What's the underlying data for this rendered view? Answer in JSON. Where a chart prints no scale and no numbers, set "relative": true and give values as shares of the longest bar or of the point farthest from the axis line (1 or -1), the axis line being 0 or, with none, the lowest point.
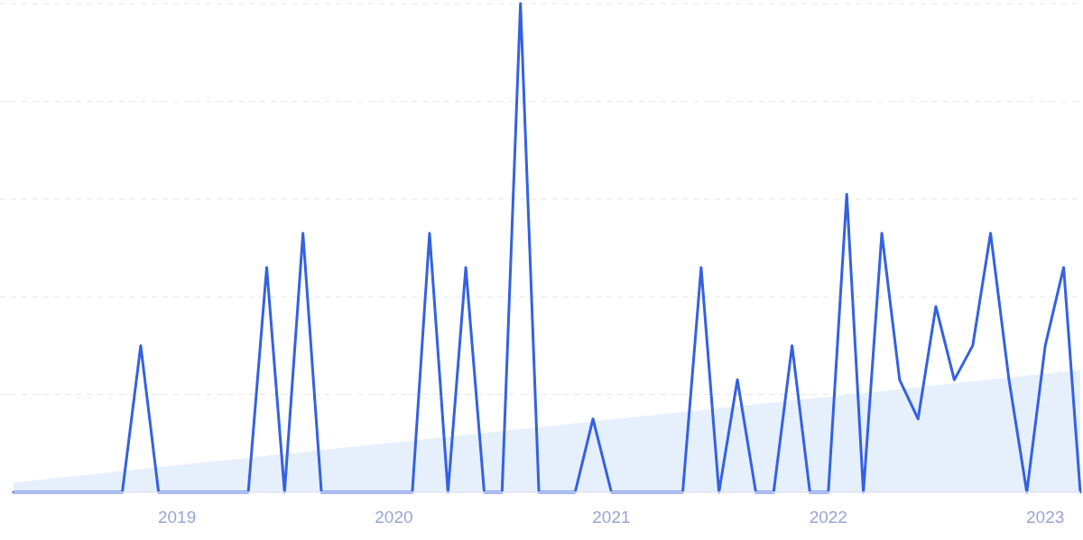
{
  "chart_data": {
    "type": "line",
    "relative": true,
    "grid": "y",
    "line_style": "solid",
    "marker": "none",
    "xlim": [
      "2018-04",
      "2023-03"
    ],
    "xticks": [
      {
        "value": "2019-01",
        "label": "2019"
      },
      {
        "value": "2020-01",
        "label": "2020"
      },
      {
        "value": "2021-01",
        "label": "2021"
      },
      {
        "value": "2022-01",
        "label": "2022"
      },
      {
        "value": "2023-01",
        "label": "2023"
      }
    ],
    "series": [
      {
        "type": "area",
        "color": "#e6effc",
        "x": [
          "2018-04",
          "2023-03"
        ],
        "values": [
          0.02,
          0.25
        ]
      },
      {
        "color": "#3461e3",
        "x": [
          "2018-04",
          "2018-05",
          "2018-06",
          "2018-07",
          "2018-08",
          "2018-09",
          "2018-10",
          "2018-11",
          "2018-12",
          "2019-01",
          "2019-02",
          "2019-03",
          "2019-04",
          "2019-05",
          "2019-06",
          "2019-07",
          "2019-08",
          "2019-09",
          "2019-10",
          "2019-11",
          "2019-12",
          "2020-01",
          "2020-02",
          "2020-03",
          "2020-04",
          "2020-05",
          "2020-06",
          "2020-07",
          "2020-08",
          "2020-09",
          "2020-10",
          "2020-11",
          "2020-12",
          "2021-01",
          "2021-02",
          "2021-03",
          "2021-04",
          "2021-05",
          "2021-06",
          "2021-07",
          "2021-08",
          "2021-09",
          "2021-10",
          "2021-11",
          "2021-12",
          "2022-01",
          "2022-02",
          "2022-03",
          "2022-04",
          "2022-05",
          "2022-06",
          "2022-07",
          "2022-08",
          "2022-09",
          "2022-10",
          "2022-11",
          "2022-12",
          "2023-01",
          "2023-02",
          "2023-03"
        ],
        "values": [
          0,
          0,
          0,
          0,
          0,
          0,
          0,
          0.3,
          0,
          0,
          0,
          0,
          0,
          0,
          0.46,
          0,
          0.53,
          0,
          0,
          0,
          0,
          0,
          0,
          0.53,
          0,
          0.46,
          0,
          0,
          1,
          0,
          0,
          0,
          0.15,
          0,
          0,
          0,
          0,
          0,
          0.46,
          0,
          0.23,
          0,
          0,
          0.3,
          0,
          0,
          0.61,
          0,
          0.53,
          0.23,
          0.15,
          0.38,
          0.23,
          0.3,
          0.53,
          0.23,
          0,
          0.3,
          0.46,
          0
        ]
      }
    ]
  }
}
